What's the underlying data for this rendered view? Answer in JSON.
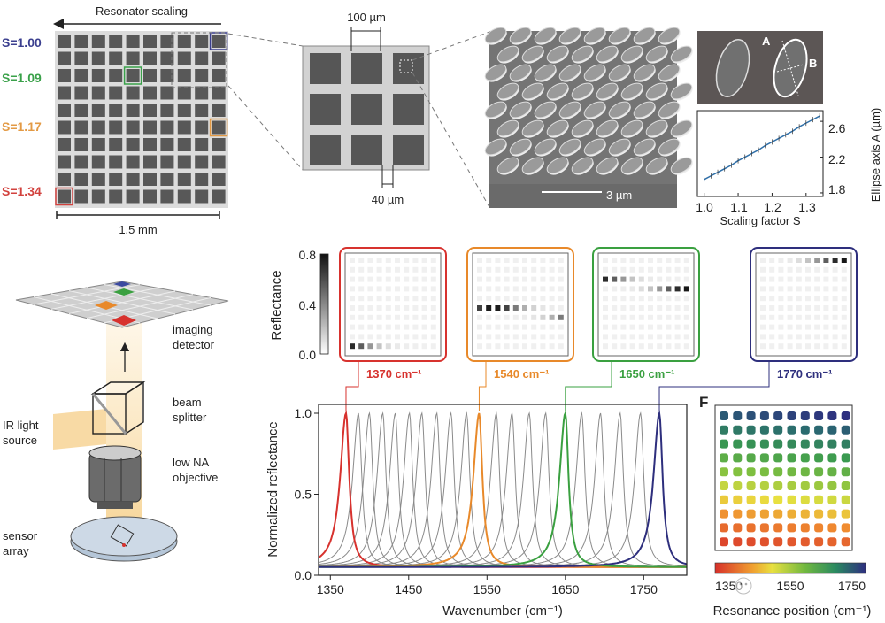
{
  "panel_a": {
    "title": "Resonator scaling",
    "scale_label": "1.5 mm",
    "s_labels": [
      {
        "text": "S=1.00",
        "color": "#3b3f8f"
      },
      {
        "text": "S=1.09",
        "color": "#3aa14a"
      },
      {
        "text": "S=1.17",
        "color": "#e39a45"
      },
      {
        "text": "S=1.34",
        "color": "#d2423e"
      }
    ]
  },
  "panel_b": {
    "top_dimension": "100 µm",
    "bottom_dimension": "40 µm"
  },
  "panel_sem": {
    "scale_label": "3 µm"
  },
  "panel_ellipse": {
    "label_a": "A",
    "label_b": "B"
  },
  "panel_c": {
    "imaging_detector": [
      "imaging",
      "detector"
    ],
    "beam_splitter": [
      "beam",
      "splitter"
    ],
    "ir_source": [
      "IR light",
      "source"
    ],
    "objective": [
      "low NA",
      "objective"
    ],
    "sensor_array": [
      "sensor",
      "array"
    ]
  },
  "panel_d": {
    "colorbar_label": "Reflectance",
    "colorbar_ticks": [
      "0.8",
      "0.4",
      "0.0"
    ],
    "maps": [
      {
        "label": "1370 cm⁻¹",
        "wavenumber": 1370,
        "color": "#d7322e"
      },
      {
        "label": "1540 cm⁻¹",
        "wavenumber": 1540,
        "color": "#e8892a"
      },
      {
        "label": "1650 cm⁻¹",
        "wavenumber": 1650,
        "color": "#3aa040"
      },
      {
        "label": "1770 cm⁻¹",
        "wavenumber": 1770,
        "color": "#2e2f7d"
      }
    ]
  },
  "panel_f": {
    "letter": "F",
    "xlabel": "Resonance position (cm⁻¹)",
    "colorbar_ticks": [
      "1350",
      "1550",
      "1750"
    ],
    "watermark": "红外芯闻"
  },
  "resonance_map": [
    [
      1734,
      1738,
      1742,
      1746,
      1750,
      1754,
      1758,
      1762,
      1766,
      1770
    ],
    [
      1694,
      1698,
      1702,
      1706,
      1710,
      1714,
      1718,
      1722,
      1726,
      1730
    ],
    [
      1654,
      1658,
      1662,
      1666,
      1670,
      1674,
      1678,
      1682,
      1686,
      1690
    ],
    [
      1614,
      1618,
      1622,
      1626,
      1630,
      1634,
      1638,
      1642,
      1646,
      1650
    ],
    [
      1574,
      1578,
      1582,
      1586,
      1590,
      1594,
      1598,
      1602,
      1606,
      1610
    ],
    [
      1534,
      1538,
      1542,
      1546,
      1550,
      1554,
      1558,
      1562,
      1566,
      1570
    ],
    [
      1494,
      1498,
      1502,
      1506,
      1510,
      1514,
      1518,
      1522,
      1526,
      1530
    ],
    [
      1454,
      1458,
      1462,
      1466,
      1470,
      1474,
      1478,
      1482,
      1486,
      1490
    ],
    [
      1414,
      1418,
      1422,
      1426,
      1430,
      1434,
      1438,
      1442,
      1446,
      1450
    ],
    [
      1374,
      1378,
      1382,
      1386,
      1390,
      1394,
      1398,
      1402,
      1406,
      1410
    ]
  ],
  "chart_data": [
    {
      "type": "line",
      "title": "",
      "xlabel": "Scaling factor S",
      "ylabel": "Ellipse axis A (µm)",
      "xlim": [
        0.98,
        1.35
      ],
      "ylim": [
        1.76,
        2.72
      ],
      "xticks": [
        "1.0",
        "1.1",
        "1.2",
        "1.3"
      ],
      "yticks": [
        "2.6",
        "2.2",
        "1.8"
      ],
      "x": [
        1.0,
        1.02,
        1.04,
        1.06,
        1.08,
        1.1,
        1.12,
        1.14,
        1.16,
        1.18,
        1.2,
        1.22,
        1.24,
        1.26,
        1.28,
        1.3,
        1.32,
        1.34
      ],
      "y": [
        1.95,
        1.99,
        2.03,
        2.07,
        2.11,
        2.16,
        2.2,
        2.24,
        2.28,
        2.33,
        2.37,
        2.41,
        2.45,
        2.49,
        2.54,
        2.58,
        2.62,
        2.66
      ],
      "color": "#2f6fa8"
    },
    {
      "type": "line",
      "title": "",
      "xlabel": "Wavenumber (cm⁻¹)",
      "ylabel": "Normalized reflectance",
      "xlim": [
        1335,
        1805
      ],
      "ylim": [
        0,
        1.05
      ],
      "xticks": [
        "1350",
        "1450",
        "1550",
        "1650",
        "1750"
      ],
      "yticks": [
        "1.0",
        "0.5",
        "0.0"
      ],
      "baseline": 0.05,
      "series": [
        {
          "name": "1370",
          "peak": 1370,
          "color": "#d7322e"
        },
        {
          "name": "1386",
          "peak": 1386,
          "color": "#8a8a8a"
        },
        {
          "name": "1400",
          "peak": 1400,
          "color": "#8a8a8a"
        },
        {
          "name": "1417",
          "peak": 1417,
          "color": "#8a8a8a"
        },
        {
          "name": "1433",
          "peak": 1433,
          "color": "#8a8a8a"
        },
        {
          "name": "1451",
          "peak": 1451,
          "color": "#8a8a8a"
        },
        {
          "name": "1467",
          "peak": 1467,
          "color": "#8a8a8a"
        },
        {
          "name": "1486",
          "peak": 1486,
          "color": "#8a8a8a"
        },
        {
          "name": "1504",
          "peak": 1504,
          "color": "#8a8a8a"
        },
        {
          "name": "1524",
          "peak": 1524,
          "color": "#8a8a8a"
        },
        {
          "name": "1540",
          "peak": 1540,
          "color": "#e8892a"
        },
        {
          "name": "1562",
          "peak": 1562,
          "color": "#8a8a8a"
        },
        {
          "name": "1582",
          "peak": 1582,
          "color": "#8a8a8a"
        },
        {
          "name": "1604",
          "peak": 1604,
          "color": "#8a8a8a"
        },
        {
          "name": "1625",
          "peak": 1625,
          "color": "#8a8a8a"
        },
        {
          "name": "1650",
          "peak": 1650,
          "color": "#3aa040"
        },
        {
          "name": "1671",
          "peak": 1671,
          "color": "#8a8a8a"
        },
        {
          "name": "1695",
          "peak": 1695,
          "color": "#8a8a8a"
        },
        {
          "name": "1720",
          "peak": 1720,
          "color": "#8a8a8a"
        },
        {
          "name": "1746",
          "peak": 1746,
          "color": "#8a8a8a"
        },
        {
          "name": "1770",
          "peak": 1770,
          "color": "#2e2f7d"
        }
      ]
    }
  ]
}
